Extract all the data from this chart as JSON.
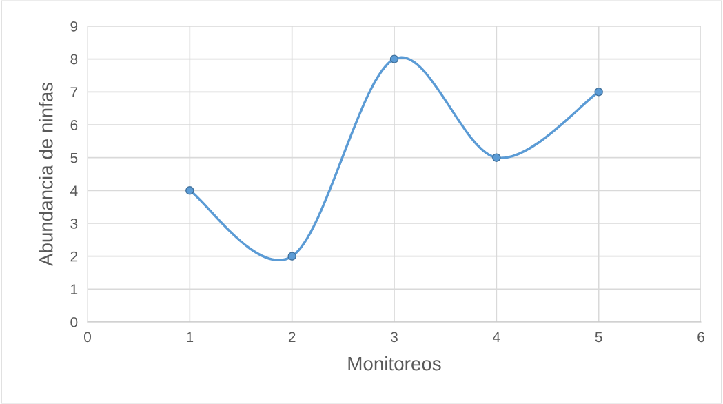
{
  "chart_data": {
    "type": "line",
    "xlabel": "Monitoreos",
    "ylabel": "Abundancia de ninfas",
    "x": [
      1,
      2,
      3,
      4,
      5
    ],
    "series": [
      {
        "color": "#5b9bd5",
        "values": [
          4,
          2,
          8,
          5,
          7
        ]
      }
    ],
    "xlim": [
      0,
      6
    ],
    "xticks": [
      0,
      1,
      2,
      3,
      4,
      5,
      6
    ],
    "ylim": [
      0,
      9
    ],
    "yticks": [
      0,
      1,
      2,
      3,
      4,
      5,
      6,
      7,
      8,
      9
    ],
    "grid": true,
    "marker": "circle",
    "line_style": "solid",
    "legend": false
  }
}
